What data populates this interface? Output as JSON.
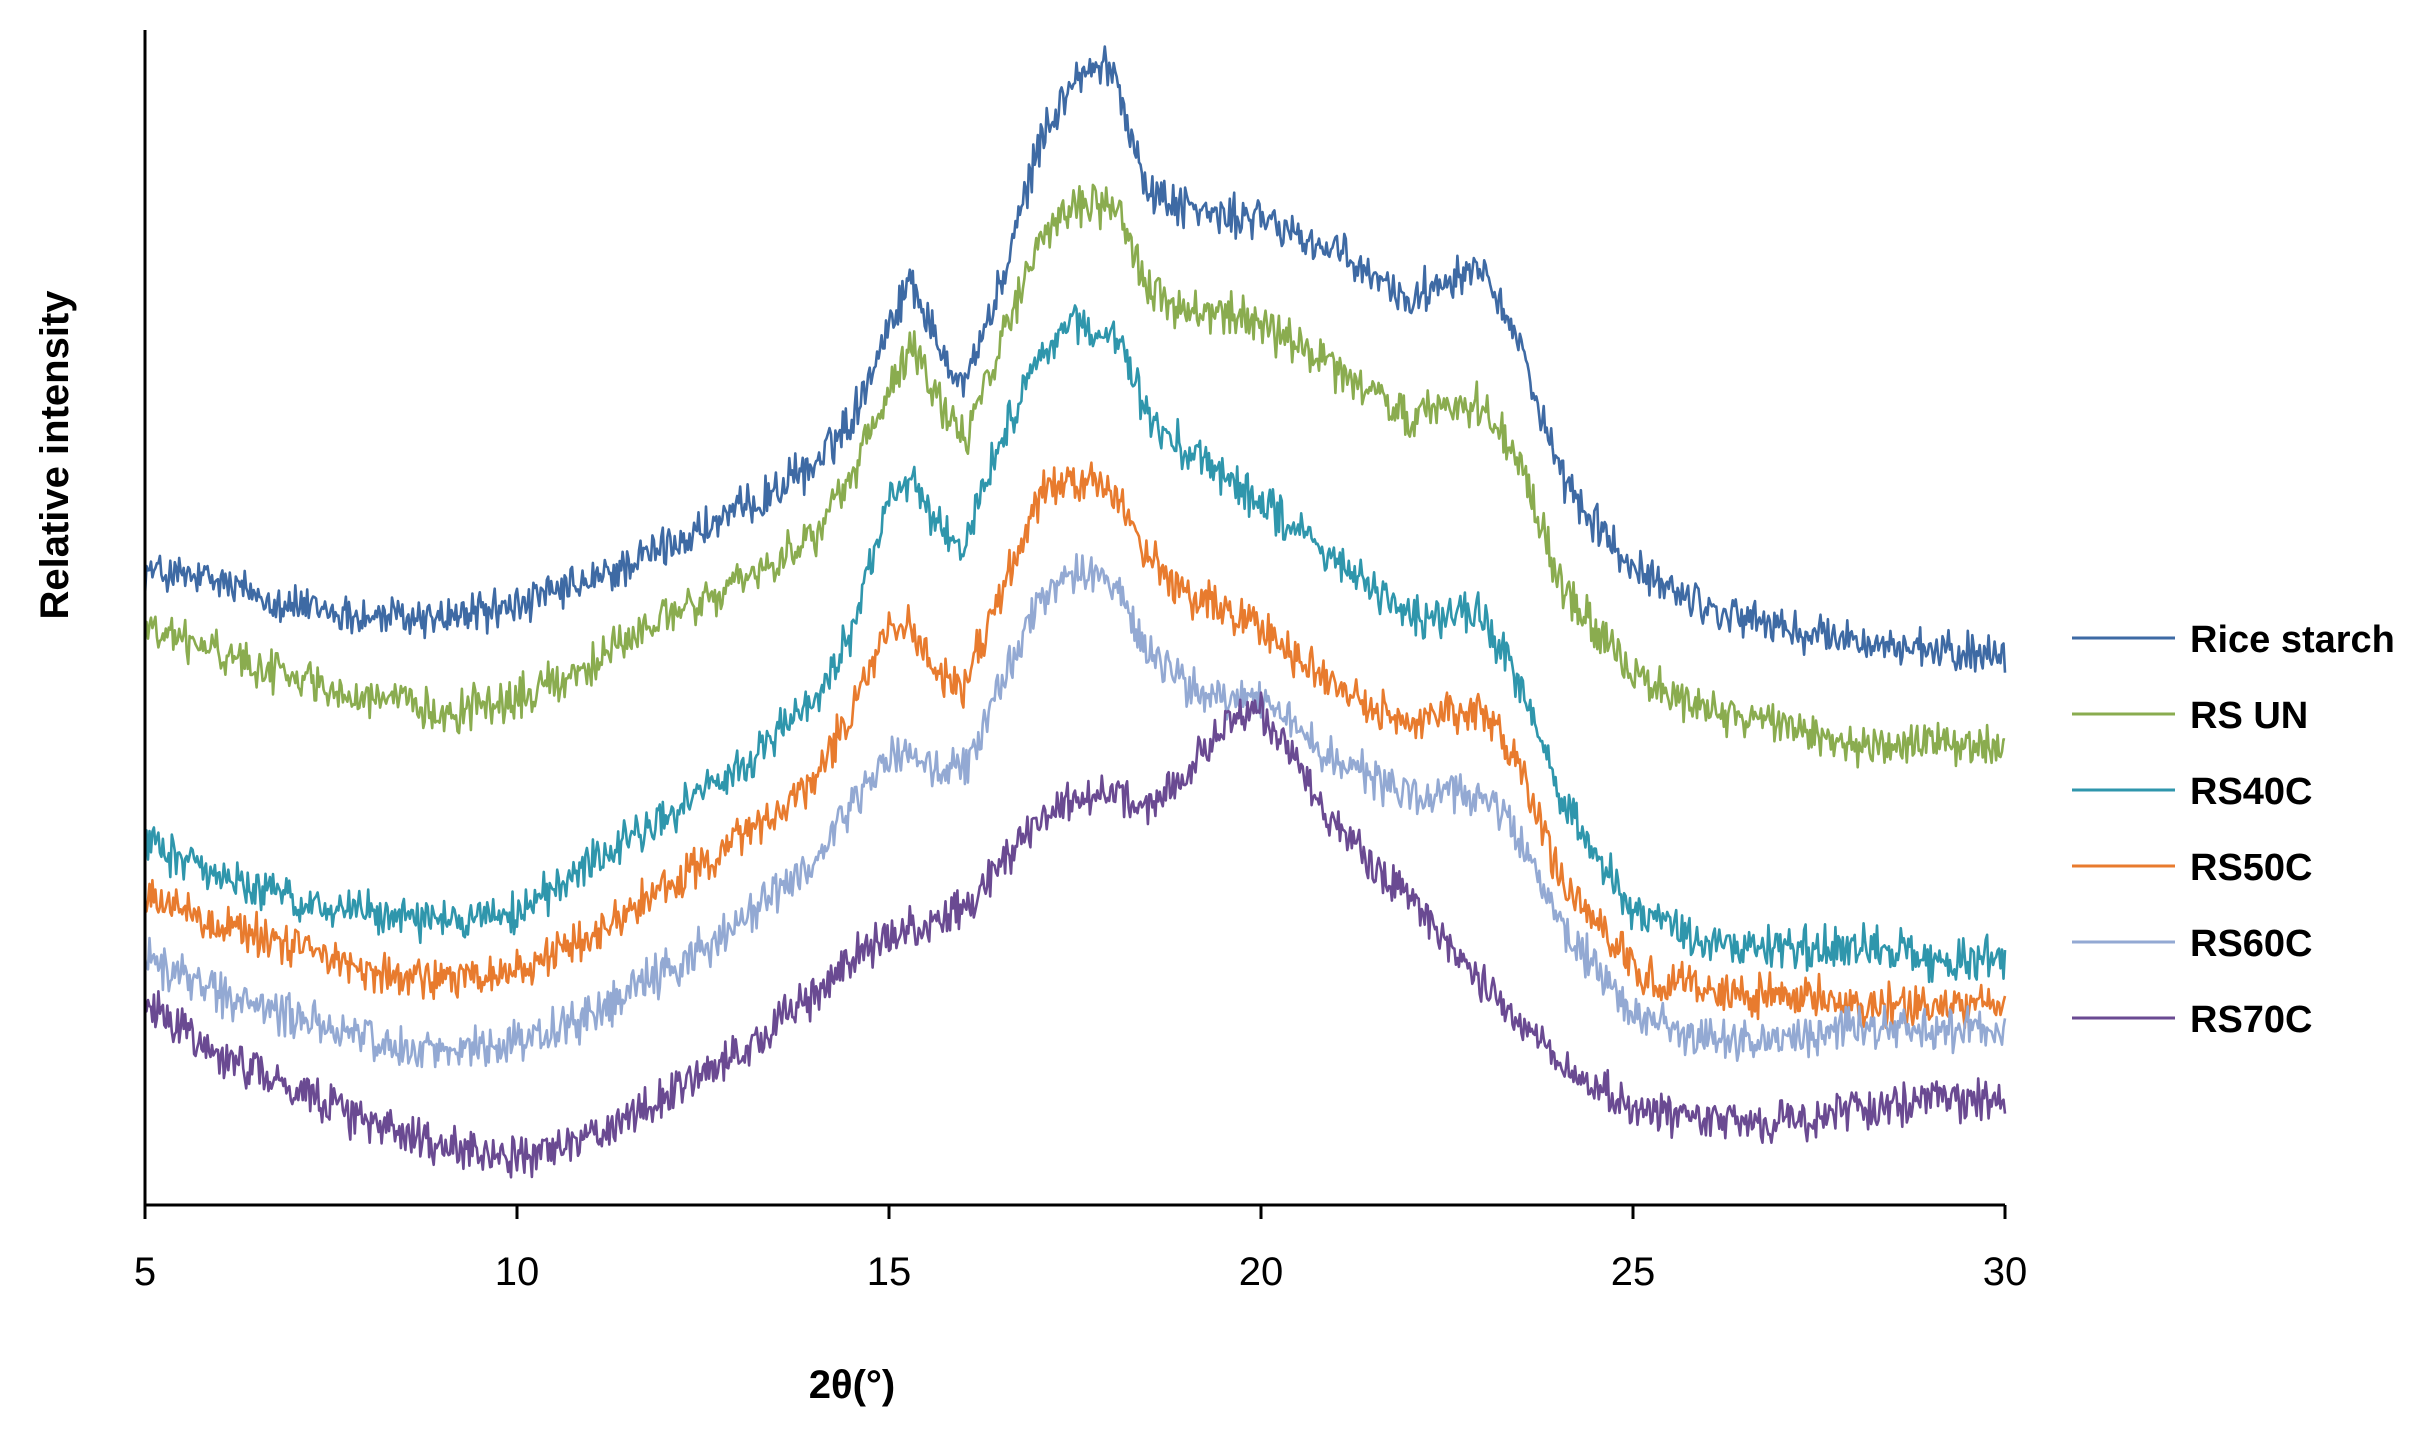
{
  "chart_data": {
    "type": "line",
    "title": "",
    "xlabel": "2θ(°)",
    "ylabel": "Relative intensity",
    "xlim": [
      5,
      30
    ],
    "x_ticks": [
      5,
      10,
      15,
      20,
      25,
      30
    ],
    "x_tick_labels": [
      "5",
      "10",
      "15",
      "20",
      "25",
      "30"
    ],
    "ylim": [
      0,
      100
    ],
    "y_ticks_shown": false,
    "grid": false,
    "legend_position": "right",
    "noise_amplitude": 2.2,
    "series": [
      {
        "name": "Rice starch",
        "color": "#3e6aa4",
        "x": [
          5,
          6,
          7,
          8,
          9,
          10,
          11,
          12,
          13,
          14,
          14.5,
          15,
          15.3,
          15.6,
          16,
          16.5,
          17,
          17.5,
          18,
          18.5,
          19,
          19.5,
          20,
          21,
          22,
          22.5,
          23,
          23.5,
          24,
          25,
          26,
          27,
          28,
          29,
          30
        ],
        "y": [
          54,
          53,
          51,
          50,
          50,
          51,
          53,
          56,
          59,
          63,
          67,
          75,
          79,
          74,
          70,
          78,
          90,
          96,
          97,
          86,
          85,
          84,
          84,
          81,
          77,
          79,
          80,
          73,
          62,
          54,
          51,
          49,
          48,
          47,
          47
        ]
      },
      {
        "name": "RS UN",
        "color": "#8aac4f",
        "x": [
          5,
          6,
          7,
          8,
          9,
          10,
          11,
          12,
          13,
          14,
          14.5,
          15,
          15.3,
          15.6,
          16,
          16.5,
          17,
          17.5,
          18,
          18.5,
          19,
          19.5,
          20,
          21,
          22,
          22.5,
          23,
          23.5,
          24,
          25,
          26,
          27,
          28,
          29,
          30
        ],
        "y": [
          49,
          47,
          45,
          43,
          42,
          43,
          46,
          50,
          53,
          57,
          62,
          69,
          73,
          69,
          65,
          73,
          82,
          85,
          85,
          78,
          76,
          76,
          75,
          71,
          67,
          68,
          68,
          63,
          53,
          45,
          42,
          41,
          39,
          39,
          39
        ]
      },
      {
        "name": "RS40C",
        "color": "#2f96ac",
        "x": [
          5,
          6,
          7,
          8,
          9,
          10,
          11,
          12,
          13,
          14,
          14.5,
          15,
          15.3,
          15.6,
          16,
          16.5,
          17,
          17.5,
          18,
          18.5,
          19,
          19.5,
          20,
          21,
          22,
          22.5,
          23,
          23.5,
          24,
          25,
          26,
          27,
          28,
          29,
          30
        ],
        "y": [
          31,
          28,
          26,
          25,
          24,
          25,
          29,
          33,
          37,
          43,
          49,
          60,
          62,
          58,
          56,
          65,
          72,
          75,
          74,
          67,
          64,
          62,
          60,
          55,
          50,
          50,
          50,
          44,
          35,
          25,
          22,
          22,
          22,
          21,
          21
        ]
      },
      {
        "name": "RS50C",
        "color": "#e87b2e",
        "x": [
          5,
          6,
          7,
          8,
          9,
          10,
          11,
          12,
          13,
          14,
          14.5,
          15,
          15.3,
          15.6,
          16,
          16.5,
          17,
          17.5,
          18,
          18.5,
          19,
          19.5,
          20,
          21,
          22,
          22.5,
          23,
          23.5,
          24,
          25,
          26,
          27,
          28,
          29,
          30
        ],
        "y": [
          26,
          24,
          22,
          20,
          19,
          20,
          23,
          27,
          31,
          36,
          42,
          49,
          49,
          46,
          44,
          52,
          60,
          62,
          61,
          55,
          52,
          51,
          49,
          44,
          41,
          42,
          42,
          37,
          28,
          20,
          18,
          18,
          17,
          17,
          17
        ]
      },
      {
        "name": "RS60C",
        "color": "#93a9d3",
        "x": [
          5,
          6,
          7,
          8,
          9,
          10,
          11,
          12,
          13,
          14,
          14.5,
          15,
          15.3,
          15.6,
          16,
          16.5,
          17,
          17.5,
          18,
          18.5,
          19,
          19.5,
          20,
          21,
          22,
          22.5,
          23,
          23.5,
          24,
          25,
          26,
          27,
          28,
          29,
          30
        ],
        "y": [
          21,
          18,
          16,
          14,
          13,
          14,
          16,
          20,
          24,
          29,
          34,
          38,
          38,
          37,
          37,
          44,
          51,
          54,
          53,
          47,
          44,
          43,
          43,
          38,
          35,
          35,
          35,
          31,
          24,
          16,
          14,
          14,
          15,
          15,
          15
        ]
      },
      {
        "name": "RS70C",
        "color": "#6a4a92",
        "x": [
          5,
          6,
          7,
          8,
          9,
          10,
          11,
          12,
          13,
          14,
          14.5,
          15,
          15.5,
          16,
          16.5,
          17,
          17.5,
          18,
          18.5,
          19,
          19.5,
          20,
          20.5,
          21,
          22,
          23,
          24,
          25,
          26,
          27,
          28,
          29,
          30
        ],
        "y": [
          17,
          13,
          10,
          7,
          5,
          4,
          6,
          9,
          13,
          18,
          21,
          23,
          24,
          25,
          29,
          33,
          35,
          35,
          34,
          37,
          41,
          42,
          37,
          32,
          26,
          19,
          12,
          8,
          7,
          7,
          8,
          9,
          9
        ]
      }
    ]
  }
}
